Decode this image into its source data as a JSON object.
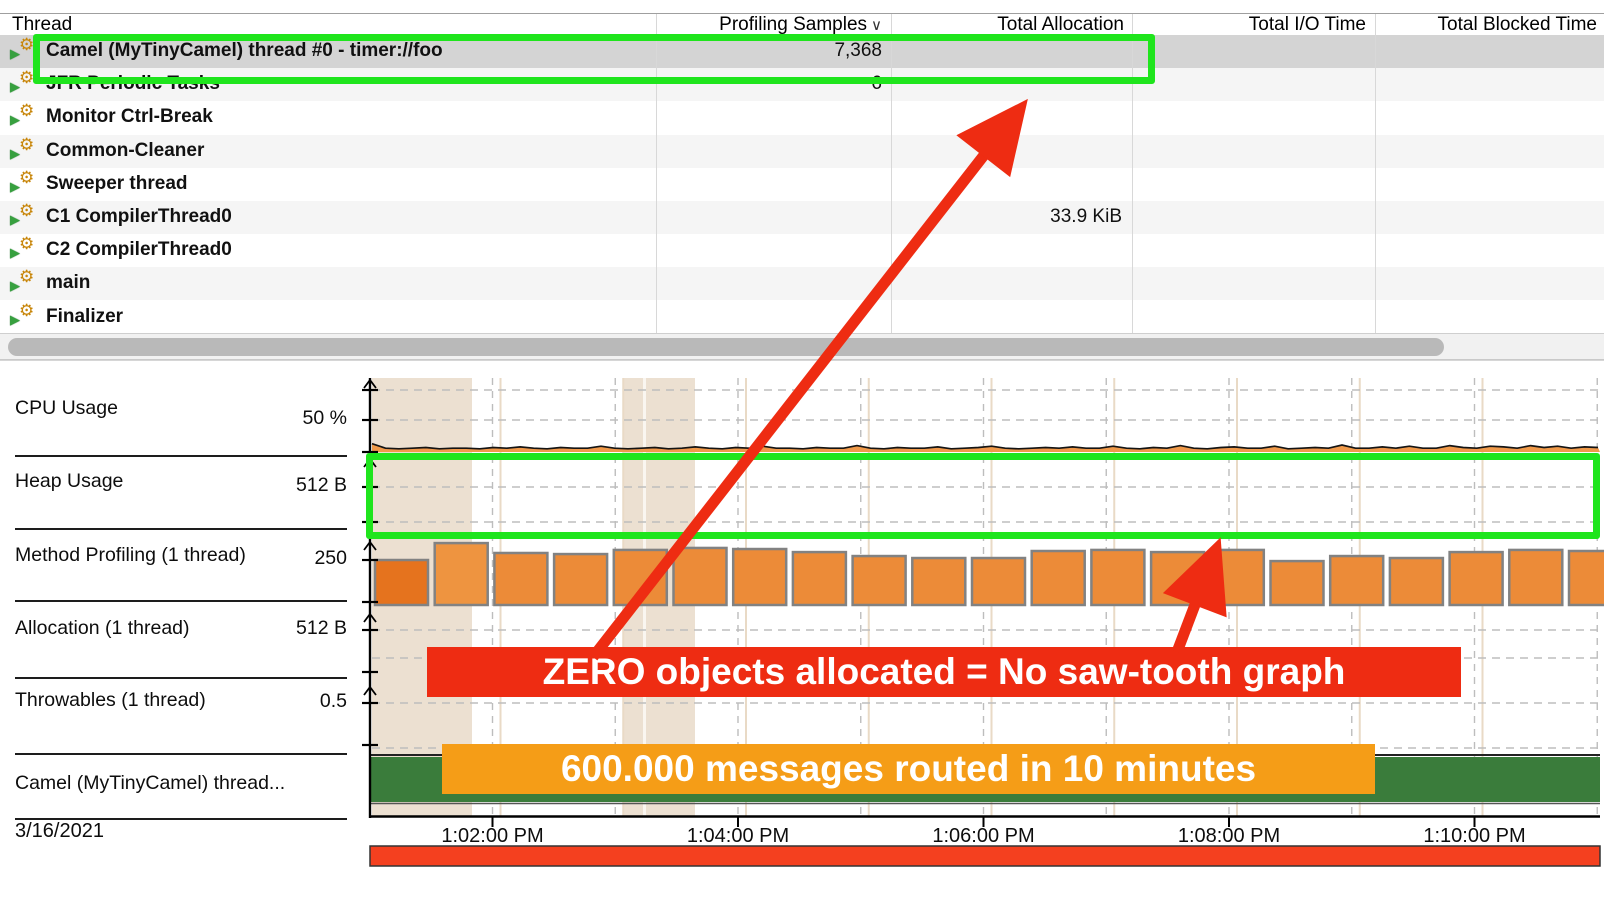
{
  "table": {
    "columns": [
      {
        "label": "Thread",
        "align": "left",
        "sorted": false
      },
      {
        "label": "Profiling Samples",
        "align": "right",
        "sorted": true
      },
      {
        "label": "Total Allocation",
        "align": "right",
        "sorted": false
      },
      {
        "label": "Total I/O Time",
        "align": "right",
        "sorted": false
      },
      {
        "label": "Total Blocked Time",
        "align": "right",
        "sorted": false
      }
    ],
    "sort_indicator": "∨",
    "icons": {
      "expand": "▶",
      "thread_gear": "⚙"
    },
    "rows": [
      {
        "thread": "Camel (MyTinyCamel) thread #0 - timer://foo",
        "profiling_samples": "7,368",
        "total_allocation": "",
        "total_io_time": "",
        "total_blocked_time": "",
        "selected": true
      },
      {
        "thread": "JFR Periodic Tasks",
        "profiling_samples": "6",
        "total_allocation": "",
        "total_io_time": "",
        "total_blocked_time": "",
        "selected": false
      },
      {
        "thread": "Monitor Ctrl-Break",
        "profiling_samples": "",
        "total_allocation": "",
        "total_io_time": "",
        "total_blocked_time": "",
        "selected": false
      },
      {
        "thread": "Common-Cleaner",
        "profiling_samples": "",
        "total_allocation": "",
        "total_io_time": "",
        "total_blocked_time": "",
        "selected": false
      },
      {
        "thread": "Sweeper thread",
        "profiling_samples": "",
        "total_allocation": "",
        "total_io_time": "",
        "total_blocked_time": "",
        "selected": false
      },
      {
        "thread": "C1 CompilerThread0",
        "profiling_samples": "",
        "total_allocation": "33.9 KiB",
        "total_io_time": "",
        "total_blocked_time": "",
        "selected": false
      },
      {
        "thread": "C2 CompilerThread0",
        "profiling_samples": "",
        "total_allocation": "",
        "total_io_time": "",
        "total_blocked_time": "",
        "selected": false
      },
      {
        "thread": "main",
        "profiling_samples": "",
        "total_allocation": "",
        "total_io_time": "",
        "total_blocked_time": "",
        "selected": false
      },
      {
        "thread": "Finalizer",
        "profiling_samples": "",
        "total_allocation": "",
        "total_io_time": "",
        "total_blocked_time": "",
        "selected": false
      }
    ]
  },
  "chart": {
    "lanes": [
      {
        "label": "CPU Usage",
        "tick": "50 %"
      },
      {
        "label": "Heap Usage",
        "tick": "512 B"
      },
      {
        "label": "Method Profiling (1 thread)",
        "tick": "250"
      },
      {
        "label": "Allocation (1 thread)",
        "tick": "512 B"
      },
      {
        "label": "Throwables (1 thread)",
        "tick": "0.5"
      },
      {
        "label": "Camel (MyTinyCamel) thread...",
        "tick": ""
      }
    ],
    "date": "3/16/2021"
  },
  "chart_data": [
    {
      "type": "area",
      "series": "CPU Usage",
      "unit": "%",
      "axis_tick": "50 %",
      "values_pct": [
        13,
        6,
        5,
        6,
        7,
        5,
        6,
        6,
        5,
        7,
        6,
        8,
        6,
        5,
        7,
        6,
        6,
        9,
        6,
        5,
        6,
        7,
        5,
        6,
        8,
        6,
        5,
        7,
        6,
        9,
        6,
        6,
        5,
        7,
        6,
        6,
        10,
        6,
        5,
        7,
        6,
        6,
        8,
        5,
        6,
        7,
        9,
        6,
        5,
        6,
        7,
        6,
        8,
        6,
        6,
        9,
        6,
        5,
        7,
        6,
        10,
        6,
        5,
        7,
        8,
        6,
        6,
        9,
        5,
        6,
        7,
        6,
        11,
        6,
        6,
        8,
        6,
        9,
        6,
        6,
        10,
        7,
        6,
        9,
        8,
        6,
        10,
        7,
        9,
        6,
        8,
        7
      ],
      "note": "flat low CPU usage, approx 5-8%"
    },
    {
      "type": "area",
      "series": "Heap Usage",
      "unit": "B",
      "axis_tick": "512 B",
      "values": "zero - no heap growth, no saw-tooth"
    },
    {
      "type": "bar",
      "series": "Method Profiling (1 thread)",
      "axis_tick": "250",
      "values": [
        250,
        344,
        289,
        283,
        306,
        317,
        311,
        294,
        272,
        261,
        261,
        300,
        306,
        294,
        306,
        244,
        272,
        261,
        294,
        306,
        300
      ]
    },
    {
      "type": "area",
      "series": "Allocation (1 thread)",
      "unit": "B",
      "axis_tick": "512 B",
      "values": "zero"
    },
    {
      "type": "area",
      "series": "Throwables (1 thread)",
      "axis_tick": "0.5",
      "values": "zero"
    },
    {
      "type": "timeline",
      "series": "Camel (MyTinyCamel) thread...",
      "color_hex": "#3a7c3b",
      "span": "full recording"
    }
  ],
  "time_axis": {
    "date": "3/16/2021",
    "labels": [
      "1:02:00 PM",
      "1:04:00 PM",
      "1:06:00 PM",
      "1:08:00 PM",
      "1:10:00 PM"
    ],
    "highlight_bands_x": [
      [
        372,
        472
      ],
      [
        623,
        695
      ]
    ],
    "grid": "dashed vertical per minute"
  },
  "annotations": {
    "red_label": "ZERO objects allocated = No saw-tooth graph",
    "orange_label": "600.000 messages routed in 10 minutes",
    "red_hex": "#ee2c12",
    "orange_hex": "#f59d17",
    "highlight_green_hex": "#1fe51d",
    "bottom_bar_hex": "#f4401f"
  }
}
